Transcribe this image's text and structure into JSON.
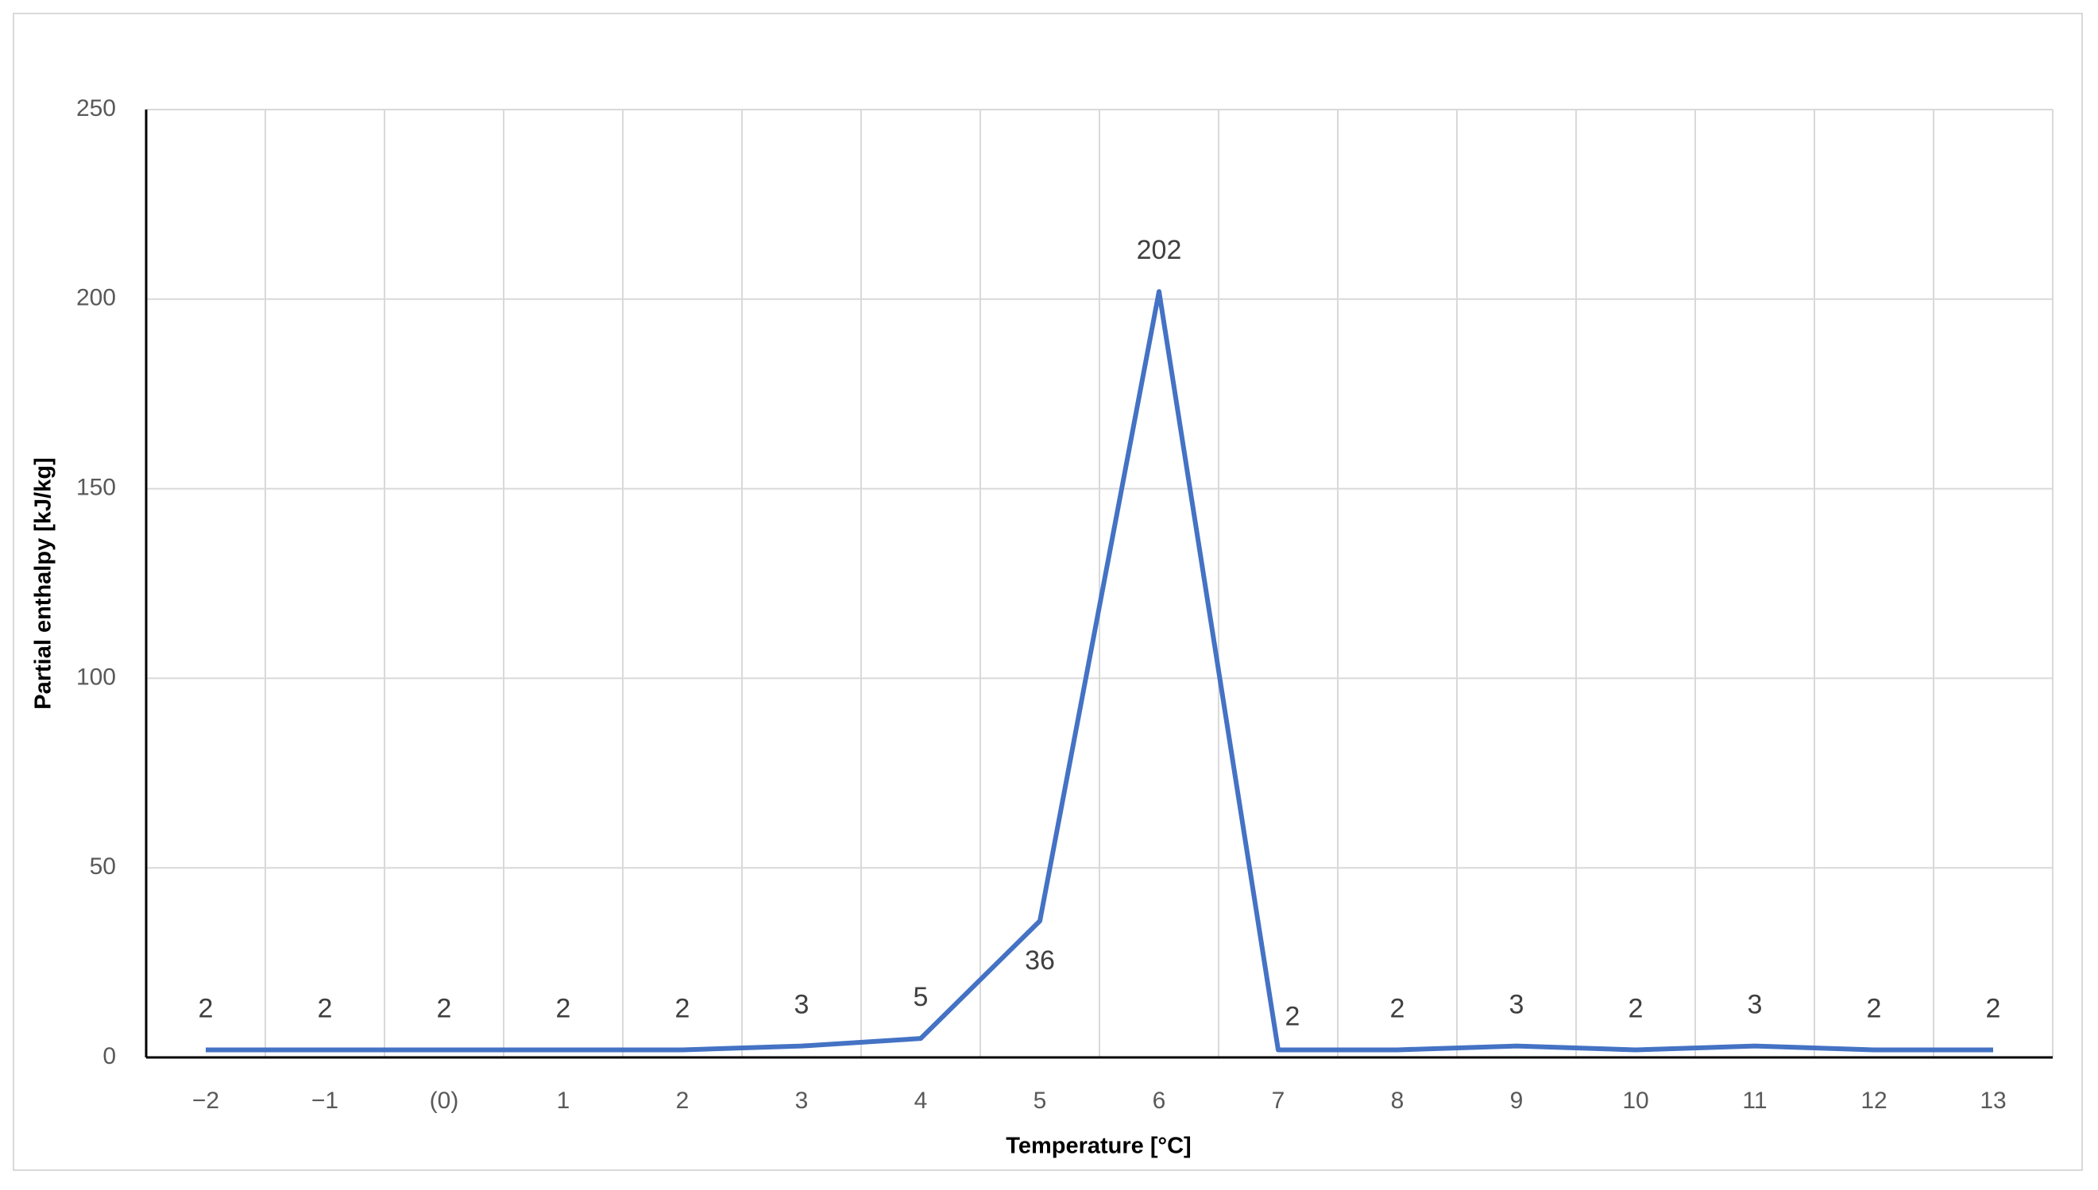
{
  "chart_data": {
    "type": "line",
    "x_label": "Temperature [°C]",
    "y_label": "Partial enthalpy [kJ/kg]",
    "categories": [
      "−2",
      "−1",
      "(0)",
      "1",
      "2",
      "3",
      "4",
      "5",
      "6",
      "7",
      "8",
      "9",
      "10",
      "11",
      "12",
      "13"
    ],
    "values": [
      2,
      2,
      2,
      2,
      2,
      3,
      5,
      36,
      202,
      2,
      2,
      3,
      2,
      3,
      2,
      2
    ],
    "color": "#4472c4",
    "ylim": [
      0,
      250
    ],
    "yticks": [
      0,
      50,
      100,
      150,
      200,
      250
    ],
    "grid": true
  }
}
